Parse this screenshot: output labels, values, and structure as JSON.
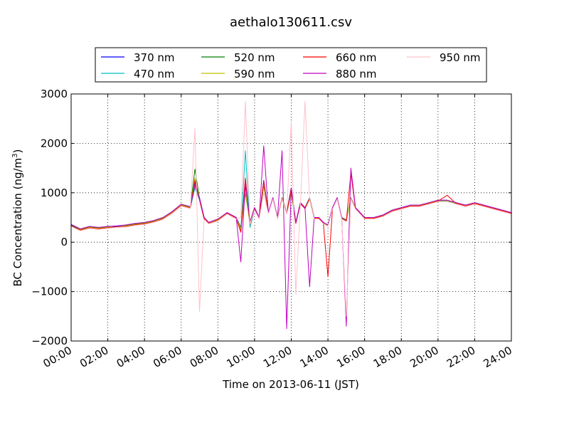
{
  "chart_data": {
    "type": "line",
    "title": "aethalo130611.csv",
    "xlabel": "Time on 2013-06-11 (JST)",
    "ylabel": "BC Concentration (ng/m³)",
    "ylabel_main": "BC Concentration (ng/m",
    "ylabel_sup": "3",
    "ylabel_close": ")",
    "xlim": [
      0,
      24
    ],
    "ylim": [
      -2000,
      3000
    ],
    "grid": true,
    "legend_position": "top",
    "x_unit": "hour",
    "x_ticks": [
      {
        "value": 0,
        "label": "00:00"
      },
      {
        "value": 2,
        "label": "02:00"
      },
      {
        "value": 4,
        "label": "04:00"
      },
      {
        "value": 6,
        "label": "06:00"
      },
      {
        "value": 8,
        "label": "08:00"
      },
      {
        "value": 10,
        "label": "10:00"
      },
      {
        "value": 12,
        "label": "12:00"
      },
      {
        "value": 14,
        "label": "14:00"
      },
      {
        "value": 16,
        "label": "16:00"
      },
      {
        "value": 18,
        "label": "18:00"
      },
      {
        "value": 20,
        "label": "20:00"
      },
      {
        "value": 22,
        "label": "22:00"
      },
      {
        "value": 24,
        "label": "24:00"
      }
    ],
    "y_ticks": [
      {
        "value": -2000,
        "label": "−2000"
      },
      {
        "value": -1000,
        "label": "−1000"
      },
      {
        "value": 0,
        "label": "0"
      },
      {
        "value": 1000,
        "label": "1000"
      },
      {
        "value": 2000,
        "label": "2000"
      },
      {
        "value": 3000,
        "label": "3000"
      }
    ],
    "x": [
      0,
      0.5,
      1,
      1.5,
      2,
      2.5,
      3,
      3.5,
      4,
      4.5,
      5,
      5.5,
      6,
      6.5,
      6.75,
      7,
      7.25,
      7.5,
      8,
      8.5,
      9,
      9.25,
      9.5,
      9.75,
      10,
      10.25,
      10.5,
      10.75,
      11,
      11.25,
      11.5,
      11.75,
      12,
      12.25,
      12.5,
      12.75,
      13,
      13.25,
      13.5,
      13.75,
      14,
      14.25,
      14.5,
      14.75,
      15,
      15.25,
      15.5,
      16,
      16.5,
      17,
      17.5,
      18,
      18.5,
      19,
      19.5,
      20,
      20.5,
      21,
      21.5,
      22,
      22.5,
      23,
      23.5,
      24
    ],
    "series": [
      {
        "name": "370 nm",
        "color": "#0000ff",
        "values": [
          350,
          250,
          300,
          280,
          300,
          320,
          330,
          360,
          380,
          420,
          480,
          600,
          750,
          700,
          1200,
          900,
          500,
          400,
          450,
          600,
          500,
          300,
          1100,
          400,
          700,
          500,
          1250,
          600,
          900,
          500,
          900,
          600,
          1100,
          400,
          800,
          700,
          900,
          500,
          500,
          400,
          350,
          700,
          900,
          500,
          450,
          900,
          700,
          500,
          500,
          550,
          650,
          700,
          750,
          750,
          800,
          850,
          850,
          800,
          750,
          800,
          750,
          700,
          650,
          600
        ]
      },
      {
        "name": "470 nm",
        "color": "#00bfbf",
        "values": [
          330,
          240,
          290,
          270,
          290,
          310,
          320,
          350,
          370,
          410,
          470,
          590,
          740,
          690,
          1100,
          850,
          480,
          380,
          440,
          580,
          480,
          250,
          1850,
          300,
          650,
          480,
          1200,
          580,
          880,
          480,
          880,
          580,
          1050,
          380,
          780,
          680,
          880,
          480,
          480,
          380,
          330,
          680,
          880,
          480,
          430,
          880,
          680,
          480,
          480,
          530,
          630,
          680,
          730,
          730,
          780,
          830,
          830,
          780,
          730,
          780,
          730,
          680,
          630,
          580
        ]
      },
      {
        "name": "520 nm",
        "color": "#008000",
        "values": [
          340,
          260,
          310,
          290,
          310,
          300,
          340,
          370,
          390,
          430,
          490,
          610,
          760,
          710,
          1480,
          880,
          490,
          390,
          460,
          590,
          490,
          280,
          1000,
          380,
          680,
          490,
          1150,
          590,
          890,
          490,
          890,
          590,
          1000,
          390,
          790,
          690,
          890,
          490,
          490,
          390,
          340,
          690,
          890,
          490,
          440,
          890,
          690,
          490,
          490,
          540,
          640,
          690,
          740,
          740,
          790,
          840,
          840,
          790,
          740,
          790,
          740,
          690,
          640,
          590
        ]
      },
      {
        "name": "590 nm",
        "color": "#bfbf00",
        "values": [
          320,
          250,
          300,
          280,
          300,
          310,
          330,
          360,
          380,
          420,
          480,
          600,
          750,
          700,
          1300,
          870,
          480,
          390,
          450,
          590,
          490,
          270,
          1050,
          370,
          670,
          490,
          1180,
          590,
          890,
          490,
          890,
          590,
          1020,
          390,
          790,
          690,
          890,
          490,
          490,
          390,
          340,
          690,
          890,
          490,
          440,
          890,
          690,
          490,
          490,
          540,
          640,
          690,
          740,
          740,
          790,
          840,
          840,
          790,
          740,
          790,
          740,
          690,
          640,
          590
        ]
      },
      {
        "name": "660 nm",
        "color": "#ff0000",
        "values": [
          330,
          240,
          290,
          270,
          290,
          310,
          320,
          350,
          370,
          410,
          470,
          590,
          740,
          690,
          1250,
          860,
          470,
          380,
          440,
          580,
          480,
          200,
          1300,
          350,
          660,
          480,
          1230,
          580,
          880,
          480,
          880,
          580,
          1080,
          380,
          780,
          680,
          880,
          480,
          480,
          380,
          -700,
          680,
          880,
          480,
          430,
          1400,
          680,
          480,
          480,
          530,
          630,
          680,
          730,
          730,
          780,
          830,
          950,
          780,
          730,
          780,
          730,
          680,
          630,
          580
        ]
      },
      {
        "name": "880 nm",
        "color": "#bf00bf",
        "values": [
          360,
          270,
          320,
          300,
          320,
          330,
          350,
          380,
          400,
          440,
          500,
          620,
          770,
          720,
          1150,
          890,
          500,
          400,
          470,
          600,
          500,
          -400,
          1200,
          420,
          700,
          500,
          1950,
          600,
          900,
          500,
          1850,
          -1750,
          1100,
          400,
          800,
          700,
          -900,
          500,
          500,
          400,
          350,
          700,
          900,
          500,
          -1700,
          1500,
          700,
          500,
          500,
          550,
          650,
          700,
          750,
          750,
          800,
          850,
          850,
          800,
          750,
          800,
          750,
          700,
          650,
          600
        ]
      },
      {
        "name": "950 nm",
        "color": "#ffc0cb",
        "values": [
          320,
          230,
          280,
          260,
          280,
          300,
          310,
          340,
          360,
          400,
          460,
          580,
          730,
          680,
          2300,
          -1400,
          460,
          370,
          430,
          570,
          470,
          500,
          2850,
          360,
          650,
          470,
          1000,
          570,
          870,
          470,
          870,
          570,
          2450,
          -1050,
          770,
          2850,
          870,
          470,
          470,
          370,
          320,
          670,
          870,
          470,
          -1500,
          870,
          670,
          470,
          470,
          520,
          620,
          670,
          720,
          720,
          770,
          820,
          820,
          770,
          720,
          770,
          720,
          670,
          620,
          570
        ]
      }
    ]
  }
}
